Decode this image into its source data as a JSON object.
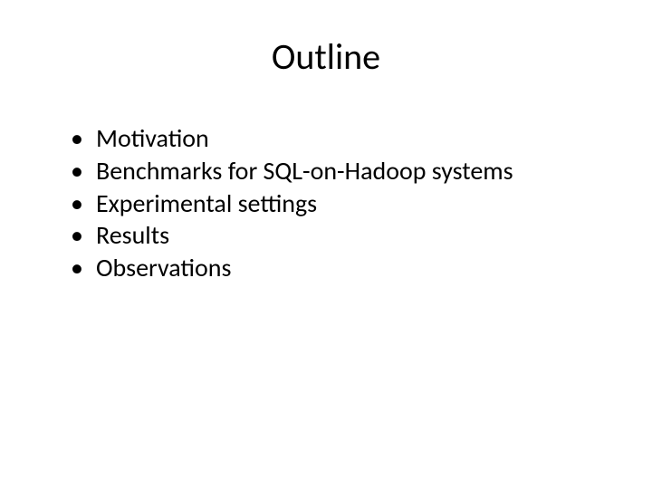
{
  "slide": {
    "title": "Outline",
    "bullets": [
      "Motivation",
      "Benchmarks  for SQL-on-Hadoop  systems",
      "Experimental settings",
      "Results",
      "Observations"
    ],
    "styling": {
      "background_color": "#ffffff",
      "text_color": "#000000",
      "title_fontsize": 40,
      "title_fontweight": 400,
      "body_fontsize": 28,
      "font_family": "Calibri"
    }
  }
}
